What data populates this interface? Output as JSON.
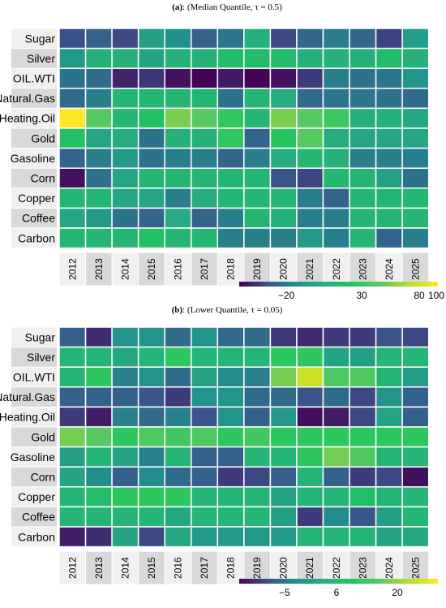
{
  "colorscale": [
    "#440154",
    "#3b528b",
    "#21918c",
    "#27ad81",
    "#22c55e",
    "#5ec962",
    "#b5de2b",
    "#fde725"
  ],
  "chart_data": [
    {
      "type": "heatmap",
      "title": "(a): (Median Quantile, τ = 0.5)",
      "title_prefix": "(a)",
      "title_rest": ": (Median Quantile, τ = 0.5)",
      "rows": [
        "Sugar",
        "Silver",
        "OIL.WTI",
        "Natural.Gas",
        "Heating.Oil",
        "Gold",
        "Gasoline",
        "Corn",
        "Copper",
        "Coffee",
        "Carbon"
      ],
      "columns": [
        "2012",
        "2013",
        "2014",
        "2015",
        "2016",
        "2017",
        "2018",
        "2019",
        "2020",
        "2021",
        "2022",
        "2023",
        "2024",
        "2025"
      ],
      "values": [
        [
          -22,
          -16,
          -24,
          13,
          2,
          -16,
          -8,
          29,
          -24,
          -14,
          -6,
          -14,
          -26,
          13
        ],
        [
          8,
          30,
          30,
          17,
          30,
          30,
          40,
          40,
          40,
          30,
          30,
          30,
          40,
          30
        ],
        [
          -10,
          -12,
          -35,
          -30,
          -40,
          -44,
          -38,
          -44,
          -40,
          -28,
          -5,
          -10,
          -8,
          6
        ],
        [
          -12,
          -5,
          35,
          35,
          35,
          35,
          -10,
          35,
          25,
          -12,
          -8,
          -8,
          -10,
          -12
        ],
        [
          120,
          70,
          35,
          45,
          80,
          70,
          55,
          35,
          80,
          70,
          60,
          30,
          30,
          20
        ],
        [
          45,
          20,
          25,
          -10,
          30,
          30,
          55,
          -15,
          50,
          70,
          25,
          20,
          20,
          20
        ],
        [
          -15,
          -5,
          10,
          -10,
          -5,
          -5,
          -15,
          -5,
          25,
          35,
          30,
          -5,
          -5,
          -5
        ],
        [
          -40,
          -10,
          20,
          35,
          35,
          35,
          35,
          35,
          -20,
          -25,
          35,
          35,
          15,
          -10
        ],
        [
          35,
          35,
          20,
          20,
          -5,
          25,
          35,
          35,
          35,
          -5,
          -15,
          35,
          35,
          35
        ],
        [
          20,
          10,
          -10,
          -15,
          25,
          -15,
          -5,
          35,
          30,
          -5,
          -5,
          35,
          35,
          35
        ],
        [
          35,
          35,
          35,
          45,
          35,
          35,
          -5,
          -5,
          -5,
          10,
          -5,
          35,
          -15,
          -5
        ]
      ],
      "colorbar": {
        "ticks": [
          "−20",
          "30",
          "80",
          "100"
        ],
        "min": -45,
        "max": 120
      }
    },
    {
      "type": "heatmap",
      "title": "(b): (Lower Quantile, τ = 0.05)",
      "title_prefix": "(b)",
      "title_rest": ": (Lower Quantile, τ = 0.05)",
      "rows": [
        "Sugar",
        "Silver",
        "OIL.WTI",
        "Natural.Gas",
        "Heating.Oil",
        "Gold",
        "Gasoline",
        "Corn",
        "Copper",
        "Coffee",
        "Carbon"
      ],
      "columns": [
        "2012",
        "2013",
        "2014",
        "2015",
        "2016",
        "2017",
        "2018",
        "2019",
        "2020",
        "2021",
        "2022",
        "2023",
        "2024",
        "2025"
      ],
      "values": [
        [
          -3,
          -7,
          2,
          2,
          -2,
          2,
          -2,
          -2,
          -6,
          -7,
          -6,
          -6,
          -4,
          -5
        ],
        [
          9,
          9,
          6,
          9,
          14,
          9,
          9,
          9,
          14,
          14,
          5,
          4,
          9,
          9
        ],
        [
          9,
          14,
          0,
          2,
          -2,
          5,
          1,
          0,
          20,
          26,
          17,
          17,
          9,
          4
        ],
        [
          -3,
          -3,
          -3,
          -4,
          -6,
          2,
          2,
          -2,
          -2,
          -4,
          -2,
          -5,
          2,
          -3
        ],
        [
          -6,
          -8,
          0,
          -2,
          0,
          -4,
          2,
          -3,
          3,
          -9,
          -8,
          -5,
          5,
          -3
        ],
        [
          20,
          18,
          14,
          17,
          16,
          17,
          14,
          16,
          14,
          14,
          14,
          14,
          14,
          14
        ],
        [
          4,
          9,
          5,
          0,
          9,
          -3,
          -3,
          9,
          9,
          14,
          20,
          17,
          9,
          9
        ],
        [
          5,
          1,
          -3,
          1,
          -2,
          -3,
          -6,
          -5,
          -3,
          9,
          -3,
          -6,
          -5,
          -9
        ],
        [
          9,
          11,
          14,
          14,
          14,
          9,
          9,
          9,
          5,
          9,
          9,
          11,
          9,
          9
        ],
        [
          9,
          9,
          9,
          9,
          6,
          9,
          9,
          9,
          4,
          -6,
          1,
          -4,
          4,
          9
        ],
        [
          -8,
          -7,
          5,
          -5,
          6,
          3,
          3,
          3,
          3,
          9,
          9,
          9,
          5,
          6
        ]
      ],
      "colorbar": {
        "ticks": [
          "−5",
          "6",
          "20"
        ],
        "min": -10,
        "max": 30
      }
    }
  ]
}
